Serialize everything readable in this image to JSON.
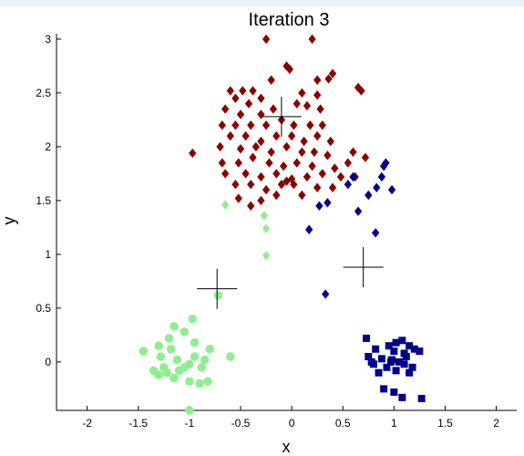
{
  "chart_data": {
    "type": "scatter",
    "title": "Iteration 3",
    "xlabel": "x",
    "ylabel": "y",
    "xlim": [
      -2.3,
      2.2
    ],
    "ylim": [
      -0.45,
      3.05
    ],
    "xticks": [
      "-2",
      "-1.5",
      "-1",
      "-0.5",
      "0",
      "0.5",
      "1",
      "1.5",
      "2"
    ],
    "yticks": [
      "0",
      "0.5",
      "1",
      "1.5",
      "2",
      "2.5",
      "3"
    ],
    "grid": false,
    "colors": {
      "dark_red": "#8b0000",
      "light_green": "#90ee90",
      "dark_blue": "#00008b",
      "centroid": "#000000"
    },
    "series": [
      {
        "marker": "diamond",
        "color": "dark_red",
        "points": [
          [
            -0.25,
            3.0
          ],
          [
            0.2,
            3.0
          ],
          [
            -0.05,
            2.75
          ],
          [
            -0.02,
            2.72
          ],
          [
            -0.2,
            2.62
          ],
          [
            0.25,
            2.62
          ],
          [
            0.4,
            2.68
          ],
          [
            0.36,
            2.63
          ],
          [
            0.65,
            2.55
          ],
          [
            0.68,
            2.52
          ],
          [
            -0.6,
            2.52
          ],
          [
            -0.48,
            2.52
          ],
          [
            -0.38,
            2.52
          ],
          [
            -0.55,
            2.45
          ],
          [
            -0.42,
            2.4
          ],
          [
            -0.3,
            2.45
          ],
          [
            0.1,
            2.5
          ],
          [
            0.25,
            2.48
          ],
          [
            -0.65,
            2.35
          ],
          [
            -0.5,
            2.3
          ],
          [
            -0.3,
            2.3
          ],
          [
            -0.18,
            2.35
          ],
          [
            0.05,
            2.4
          ],
          [
            0.15,
            2.38
          ],
          [
            0.28,
            2.35
          ],
          [
            -0.68,
            2.2
          ],
          [
            -0.55,
            2.2
          ],
          [
            -0.4,
            2.2
          ],
          [
            -0.25,
            2.2
          ],
          [
            -0.1,
            2.25
          ],
          [
            0.02,
            2.2
          ],
          [
            0.18,
            2.2
          ],
          [
            0.3,
            2.2
          ],
          [
            -0.6,
            2.1
          ],
          [
            -0.45,
            2.1
          ],
          [
            -0.3,
            2.05
          ],
          [
            -0.15,
            2.1
          ],
          [
            0.0,
            2.1
          ],
          [
            0.12,
            2.05
          ],
          [
            0.25,
            2.1
          ],
          [
            0.38,
            2.05
          ],
          [
            -0.7,
            2.0
          ],
          [
            -0.5,
            1.98
          ],
          [
            -0.35,
            2.0
          ],
          [
            -0.2,
            1.95
          ],
          [
            -0.05,
            2.0
          ],
          [
            0.1,
            1.95
          ],
          [
            0.22,
            1.95
          ],
          [
            0.35,
            1.92
          ],
          [
            0.6,
            1.95
          ],
          [
            0.72,
            1.9
          ],
          [
            -0.97,
            1.94
          ],
          [
            -0.68,
            1.85
          ],
          [
            -0.52,
            1.85
          ],
          [
            -0.38,
            1.9
          ],
          [
            -0.22,
            1.85
          ],
          [
            -0.08,
            1.82
          ],
          [
            0.05,
            1.85
          ],
          [
            0.2,
            1.82
          ],
          [
            0.42,
            1.8
          ],
          [
            0.55,
            1.85
          ],
          [
            -0.65,
            1.75
          ],
          [
            -0.45,
            1.75
          ],
          [
            -0.3,
            1.72
          ],
          [
            -0.15,
            1.75
          ],
          [
            0.0,
            1.7
          ],
          [
            0.15,
            1.72
          ],
          [
            0.3,
            1.75
          ],
          [
            0.48,
            1.72
          ],
          [
            0.62,
            1.72
          ],
          [
            -0.55,
            1.65
          ],
          [
            -0.4,
            1.65
          ],
          [
            -0.25,
            1.6
          ],
          [
            -0.1,
            1.65
          ],
          [
            0.02,
            1.65
          ],
          [
            -0.05,
            1.68
          ],
          [
            0.25,
            1.62
          ],
          [
            0.4,
            1.62
          ],
          [
            -0.52,
            1.52
          ],
          [
            -0.3,
            1.5
          ],
          [
            -0.15,
            1.55
          ],
          [
            0.1,
            1.55
          ],
          [
            -0.4,
            1.45
          ]
        ]
      },
      {
        "marker": "diamond",
        "color": "dark_blue",
        "points": [
          [
            0.92,
            1.85
          ],
          [
            0.9,
            1.82
          ],
          [
            0.88,
            1.72
          ],
          [
            0.6,
            1.72
          ],
          [
            0.55,
            1.65
          ],
          [
            0.83,
            1.62
          ],
          [
            0.98,
            1.6
          ],
          [
            0.75,
            1.55
          ],
          [
            0.35,
            1.48
          ],
          [
            0.27,
            1.45
          ],
          [
            0.65,
            1.4
          ],
          [
            0.17,
            1.23
          ],
          [
            0.82,
            1.2
          ],
          [
            0.33,
            0.63
          ]
        ]
      },
      {
        "marker": "diamond",
        "color": "light_green",
        "points": [
          [
            -0.65,
            1.46
          ],
          [
            -0.27,
            1.36
          ],
          [
            -0.25,
            1.24
          ],
          [
            -0.25,
            0.99
          ]
        ]
      },
      {
        "marker": "circle",
        "color": "light_green",
        "points": [
          [
            -0.72,
            0.62
          ],
          [
            -1.15,
            0.33
          ],
          [
            -0.97,
            0.4
          ],
          [
            -1.05,
            0.28
          ],
          [
            -1.2,
            0.22
          ],
          [
            -1.3,
            0.15
          ],
          [
            -1.18,
            0.12
          ],
          [
            -1.45,
            0.1
          ],
          [
            -0.95,
            0.18
          ],
          [
            -0.8,
            0.12
          ],
          [
            -0.6,
            0.05
          ],
          [
            -1.28,
            0.05
          ],
          [
            -1.12,
            0.02
          ],
          [
            -1.0,
            -0.02
          ],
          [
            -0.88,
            -0.05
          ],
          [
            -1.35,
            -0.08
          ],
          [
            -1.22,
            -0.1
          ],
          [
            -1.05,
            -0.05
          ],
          [
            -0.95,
            0.05
          ],
          [
            -0.85,
            0.02
          ],
          [
            -1.3,
            -0.12
          ],
          [
            -1.15,
            -0.15
          ],
          [
            -1.0,
            -0.18
          ],
          [
            -0.82,
            -0.18
          ],
          [
            -1.25,
            -0.05
          ],
          [
            -1.1,
            -0.08
          ],
          [
            -0.9,
            -0.2
          ],
          [
            -1.0,
            -0.45
          ]
        ]
      },
      {
        "marker": "square",
        "color": "dark_blue",
        "points": [
          [
            0.73,
            0.22
          ],
          [
            0.95,
            0.15
          ],
          [
            1.02,
            0.18
          ],
          [
            1.08,
            0.2
          ],
          [
            1.15,
            0.15
          ],
          [
            1.2,
            0.12
          ],
          [
            1.25,
            0.1
          ],
          [
            0.82,
            0.12
          ],
          [
            1.0,
            0.1
          ],
          [
            1.1,
            0.08
          ],
          [
            0.75,
            0.05
          ],
          [
            0.88,
            0.03
          ],
          [
            0.98,
            0.02
          ],
          [
            1.05,
            0.0
          ],
          [
            1.12,
            0.05
          ],
          [
            0.8,
            -0.02
          ],
          [
            0.93,
            -0.05
          ],
          [
            1.02,
            -0.08
          ],
          [
            1.1,
            -0.02
          ],
          [
            1.18,
            -0.05
          ],
          [
            0.85,
            -0.1
          ],
          [
            0.97,
            0.0
          ],
          [
            1.15,
            -0.1
          ],
          [
            0.9,
            -0.25
          ],
          [
            1.0,
            -0.28
          ],
          [
            1.08,
            -0.33
          ],
          [
            1.27,
            -0.34
          ],
          [
            0.78,
            0.0
          ]
        ]
      }
    ],
    "centroids": [
      [
        -0.1,
        2.28
      ],
      [
        -0.73,
        0.68
      ],
      [
        0.7,
        0.88
      ]
    ]
  }
}
